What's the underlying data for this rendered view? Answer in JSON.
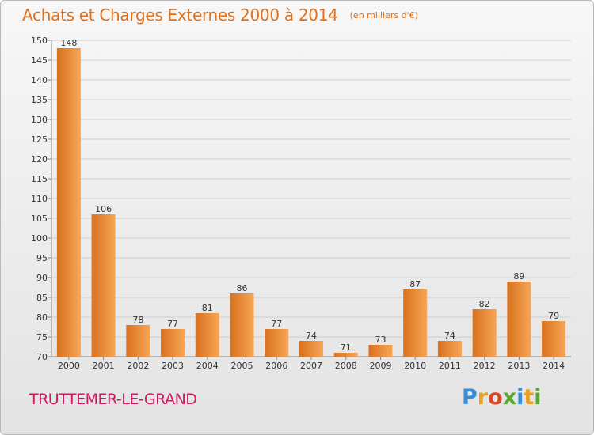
{
  "header": {
    "title": "Achats et Charges Externes 2000 à 2014",
    "unit": "(en milliers d'€)"
  },
  "footer": {
    "town": "TRUTTEMER-LE-GRAND",
    "logo": "Proxiti"
  },
  "colors": {
    "title": "#e0701b",
    "town": "#cc1a5e",
    "bar_light": "#f6a656",
    "bar_dark": "#d9711d",
    "logo_letters": [
      "#3a8ed8",
      "#e8a020",
      "#d94a2a",
      "#5aa832",
      "#3a8ed8",
      "#e8a020",
      "#5aa832"
    ]
  },
  "chart_data": {
    "type": "bar",
    "categories": [
      "2000",
      "2001",
      "2002",
      "2003",
      "2004",
      "2005",
      "2006",
      "2007",
      "2008",
      "2009",
      "2010",
      "2011",
      "2012",
      "2013",
      "2014"
    ],
    "values": [
      148,
      106,
      78,
      77,
      81,
      86,
      77,
      74,
      71,
      73,
      87,
      74,
      82,
      89,
      79
    ],
    "title": "Achats et Charges Externes 2000 à 2014",
    "xlabel": "",
    "ylabel": "",
    "ylim": [
      70,
      150
    ],
    "yticks": [
      70,
      75,
      80,
      85,
      90,
      95,
      100,
      105,
      110,
      115,
      120,
      125,
      130,
      135,
      140,
      145,
      150
    ],
    "grid": true,
    "data_labels": true
  }
}
